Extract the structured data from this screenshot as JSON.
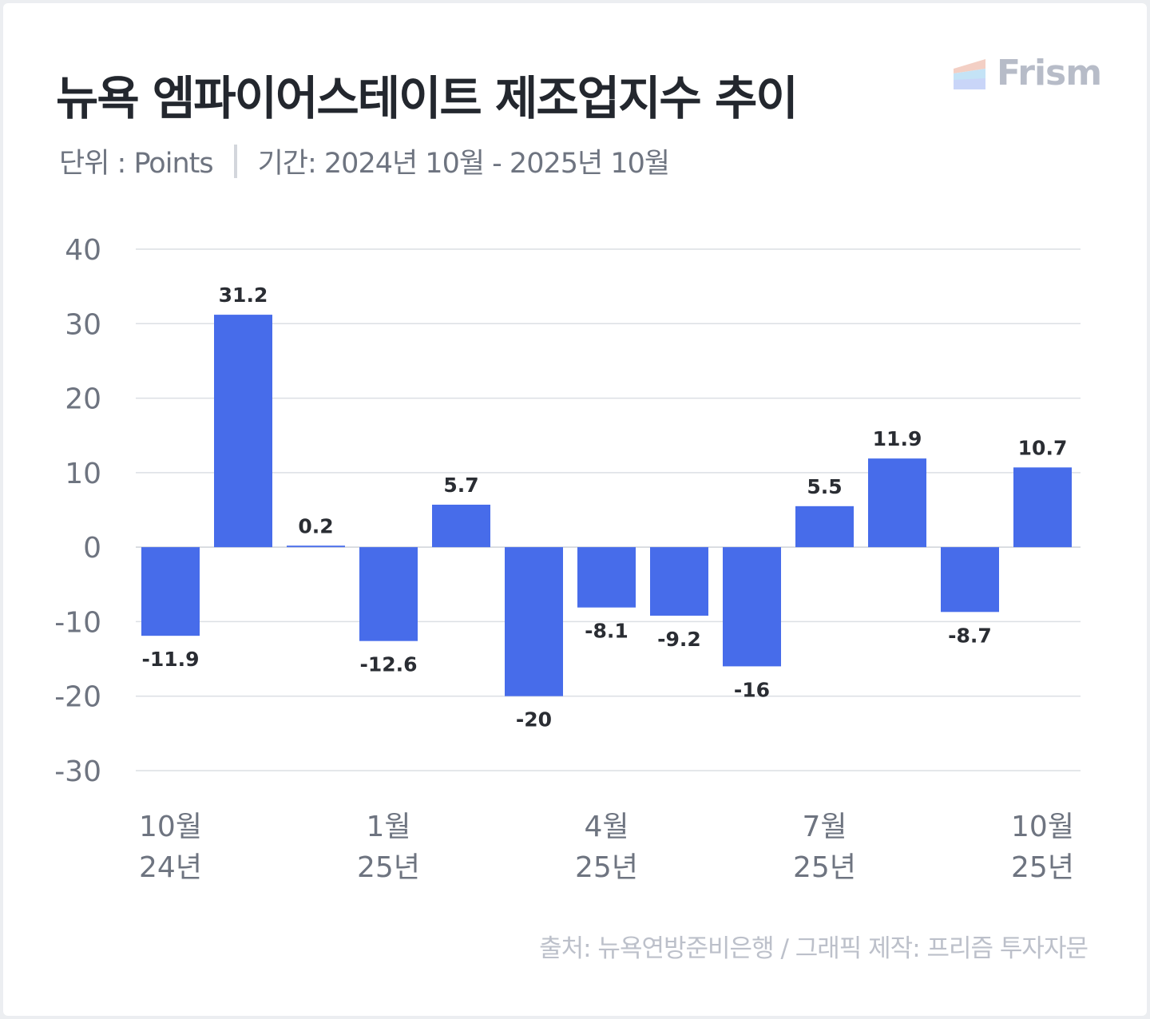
{
  "header": {
    "title": "뉴욕 엠파이어스테이트 제조업지수 추이",
    "unit": "단위 : Points",
    "period": "기간: 2024년 10월 - 2025년 10월"
  },
  "logo": {
    "text": "Frism",
    "colors": [
      "#f3cfc4",
      "#c4e3f6",
      "#c9d5f8"
    ]
  },
  "footer": {
    "source": "출처: 뉴욕연방준비은행 / 그래픽 제작: 프리즘 투자자문"
  },
  "chart_data": {
    "type": "bar",
    "title": "뉴욕 엠파이어스테이트 제조업지수 추이",
    "ylabel": "Points",
    "ylim": [
      -30,
      40
    ],
    "yticks": [
      40,
      30,
      20,
      10,
      0,
      -10,
      -20,
      -30
    ],
    "grid": true,
    "bar_color": "#476cea",
    "categories": [
      "2024-10",
      "2024-11",
      "2024-12",
      "2025-01",
      "2025-02",
      "2025-03",
      "2025-04",
      "2025-05",
      "2025-06",
      "2025-07",
      "2025-08",
      "2025-09",
      "2025-10"
    ],
    "values": [
      -11.9,
      31.2,
      0.2,
      -12.6,
      5.7,
      -20,
      -8.1,
      -9.2,
      -16,
      5.5,
      11.9,
      -8.7,
      10.7
    ],
    "labels": [
      "-11.9",
      "31.2",
      "0.2",
      "-12.6",
      "5.7",
      "-20",
      "-8.1",
      "-9.2",
      "-16",
      "5.5",
      "11.9",
      "-8.7",
      "10.7"
    ],
    "xticks": [
      {
        "index": 0,
        "month": "10월",
        "year": "24년"
      },
      {
        "index": 3,
        "month": "1월",
        "year": "25년"
      },
      {
        "index": 6,
        "month": "4월",
        "year": "25년"
      },
      {
        "index": 9,
        "month": "7월",
        "year": "25년"
      },
      {
        "index": 12,
        "month": "10월",
        "year": "25년"
      }
    ]
  }
}
